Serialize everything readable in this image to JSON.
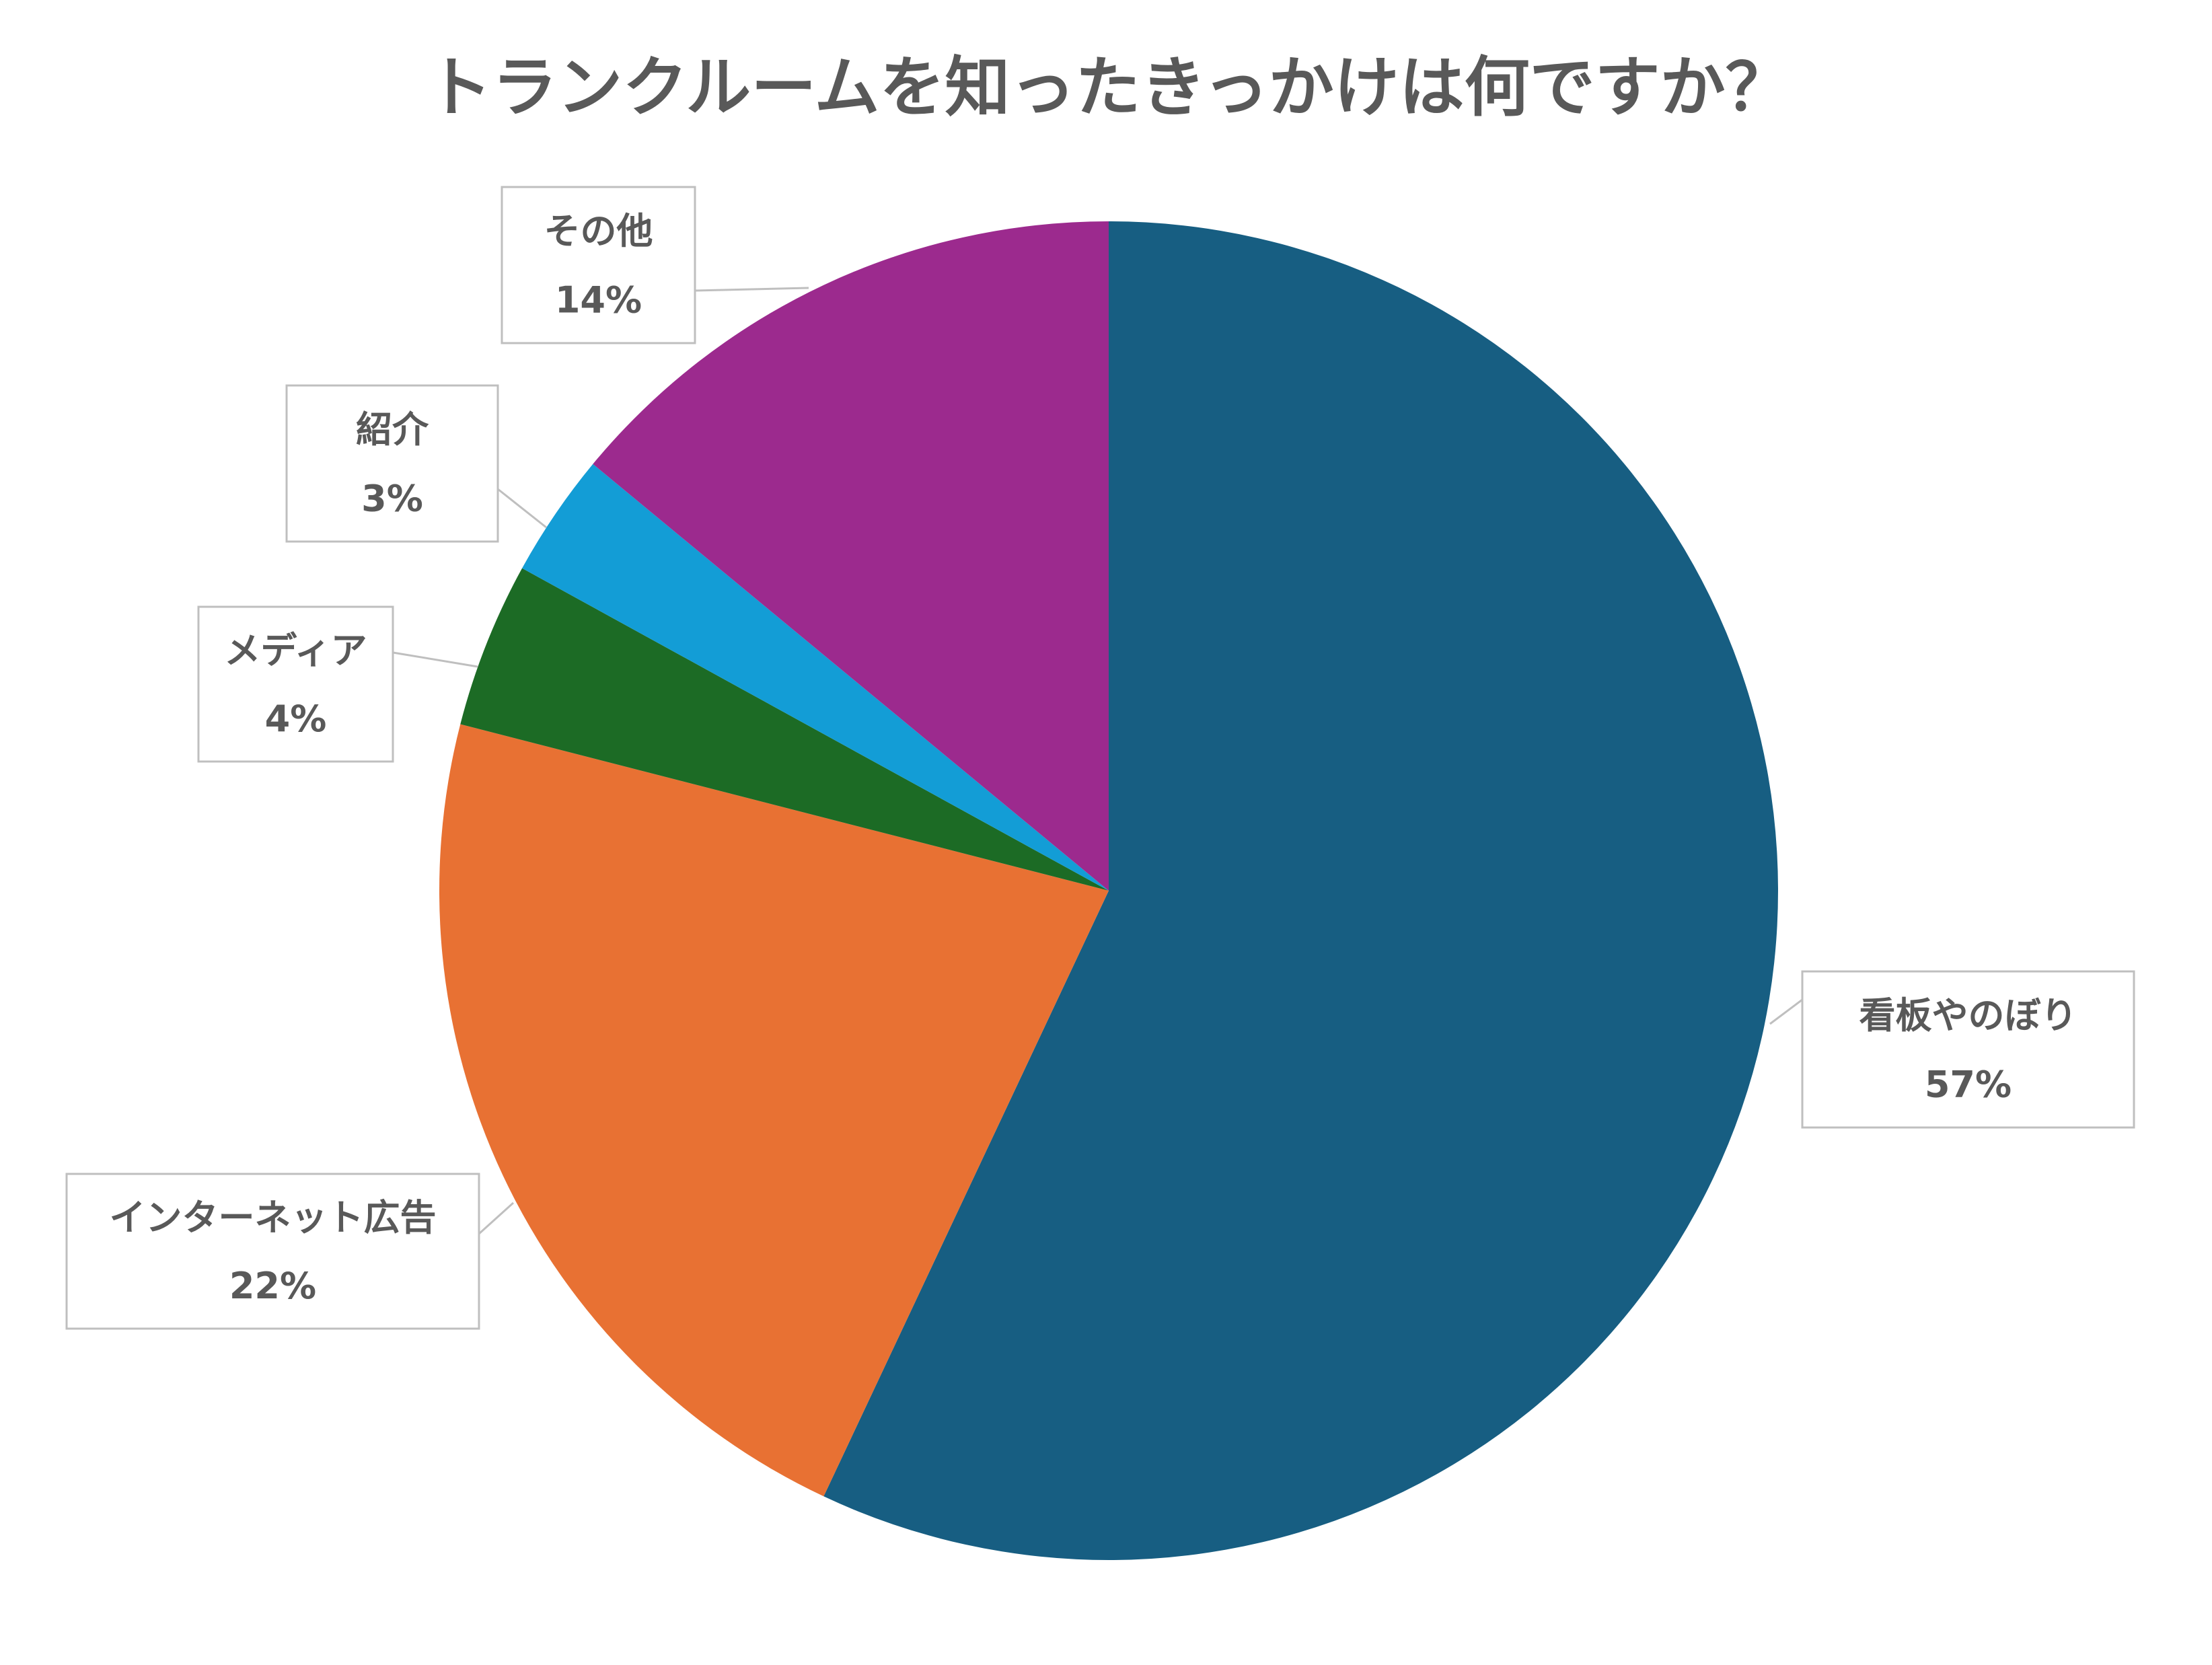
{
  "chart_data": {
    "type": "pie",
    "title": "トランクルームを知ったきっかけは何ですか？",
    "categories": [
      "看板やのぼり",
      "インターネット広告",
      "メディア",
      "紹介",
      "その他"
    ],
    "values": [
      57,
      22,
      4,
      3,
      14
    ],
    "value_labels": [
      "57%",
      "22%",
      "4%",
      "3%",
      "14%"
    ],
    "colors": [
      "#175e82",
      "#e87133",
      "#1c6b25",
      "#139dd6",
      "#9c2a8e"
    ]
  }
}
